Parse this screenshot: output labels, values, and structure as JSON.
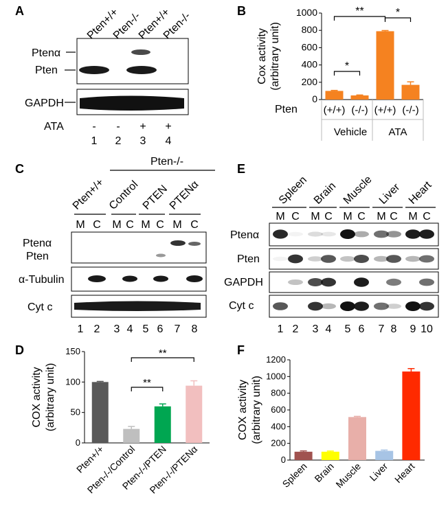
{
  "panels": {
    "A": {
      "letter": "A",
      "lane_headers": [
        "Pten+/+",
        "Pten-/-",
        "Pten+/+",
        "Pten-/-"
      ],
      "band_labels": [
        "Ptenα",
        "Pten",
        "GAPDH"
      ],
      "treatment_label": "ATA",
      "treatment_signs": [
        "-",
        "-",
        "+",
        "+"
      ],
      "lane_numbers": [
        "1",
        "2",
        "3",
        "4"
      ]
    },
    "C": {
      "letter": "C",
      "group_header": "Pten-/-",
      "lane_headers": [
        "Pten+/+",
        "Control",
        "PTEN",
        "PTENα"
      ],
      "fraction_labels": [
        "M",
        "C",
        "M",
        "C",
        "M",
        "C",
        "M",
        "C"
      ],
      "band_labels": [
        "Ptenα",
        "Pten",
        "α-Tubulin",
        "Cyt c"
      ],
      "lane_numbers": [
        "1",
        "2",
        "3",
        "4",
        "5",
        "6",
        "7",
        "8"
      ]
    },
    "E": {
      "letter": "E",
      "tissue_headers": [
        "Spleen",
        "Brain",
        "Muscle",
        "Liver",
        "Heart"
      ],
      "fraction_labels": [
        "M",
        "C",
        "M",
        "C",
        "M",
        "C",
        "M",
        "C",
        "M",
        "C"
      ],
      "band_labels": [
        "Ptenα",
        "Pten",
        "GAPDH",
        "Cyt c"
      ],
      "lane_numbers": [
        "1",
        "2",
        "3",
        "4",
        "5",
        "6",
        "7",
        "8",
        "9",
        "10"
      ]
    }
  },
  "chart_data": [
    {
      "panel": "B",
      "type": "bar",
      "ylabel": "Cox activity (arbitrary unit)",
      "ylabel_lines": [
        "Cox activity",
        "(arbitrary unit)"
      ],
      "row_label": "Pten",
      "categories": [
        "(+/+)",
        "(-/-)",
        "(+/+)",
        "(-/-)"
      ],
      "groups": [
        "Vehicle",
        "ATA"
      ],
      "values": [
        100,
        48,
        790,
        170
      ],
      "errors": [
        6,
        5,
        8,
        35
      ],
      "ylim": [
        0,
        1000
      ],
      "yticks": [
        "0",
        "200",
        "400",
        "600",
        "800",
        "1000"
      ],
      "bar_color": "#F58220",
      "significance": [
        "*",
        "**",
        "*"
      ]
    },
    {
      "panel": "D",
      "type": "bar",
      "ylabel": "COX activity (arbitrary unit)",
      "ylabel_lines": [
        "COX activity",
        "(arbitrary unit)"
      ],
      "categories": [
        "Pten+/+",
        "Pten-/-/Control",
        "Pten-/-/PTEN",
        "Pten-/-/PTENα"
      ],
      "values": [
        100,
        23,
        60,
        94
      ],
      "errors": [
        1,
        4,
        4,
        8
      ],
      "ylim": [
        0,
        150
      ],
      "yticks": [
        "0",
        "50",
        "100",
        "150"
      ],
      "colors": [
        "#595959",
        "#BFBFBF",
        "#00A651",
        "#F2BFBF"
      ],
      "significance": [
        "**",
        "**"
      ]
    },
    {
      "panel": "F",
      "type": "bar",
      "ylabel": "COX activity (arbitrary unit)",
      "ylabel_lines": [
        "COX activity",
        "(arbitrary unit)"
      ],
      "categories": [
        "Spleen",
        "Brain",
        "Muscle",
        "Liver",
        "Heart"
      ],
      "values": [
        100,
        100,
        515,
        110,
        1060
      ],
      "errors": [
        10,
        8,
        8,
        10,
        35
      ],
      "ylim": [
        0,
        1200
      ],
      "yticks": [
        "0",
        "200",
        "400",
        "600",
        "800",
        "1000",
        "1200"
      ],
      "colors": [
        "#A0524F",
        "#FFFF00",
        "#E8AFA9",
        "#A7C4E5",
        "#FF2A00"
      ]
    }
  ]
}
